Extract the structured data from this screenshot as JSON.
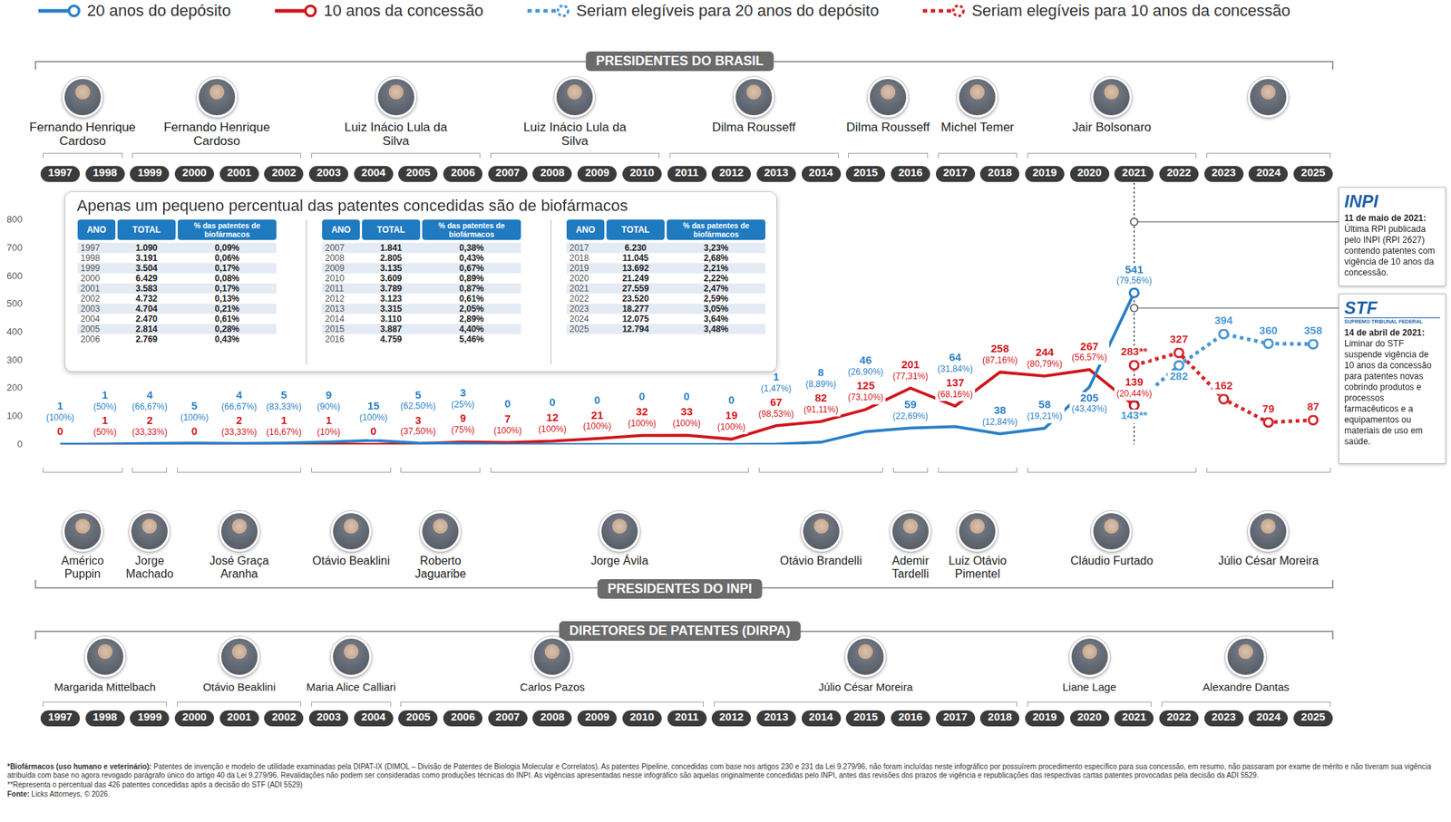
{
  "chart_data": {
    "type": "line",
    "categories": [
      "1997",
      "1998",
      "1999",
      "2000",
      "2001",
      "2002",
      "2003",
      "2004",
      "2005",
      "2006",
      "2007",
      "2008",
      "2009",
      "2010",
      "2011",
      "2012",
      "2013",
      "2014",
      "2015",
      "2016",
      "2017",
      "2018",
      "2019",
      "2020",
      "2021",
      "2022",
      "2023",
      "2024",
      "2025"
    ],
    "ylim": [
      0,
      800
    ],
    "yticks": [
      0,
      100,
      200,
      300,
      400,
      500,
      600,
      700,
      800
    ],
    "grid": false,
    "legend": "top",
    "data_labels": true,
    "series": [
      {
        "name": "20 anos do depósito",
        "color": "#2a7fc6",
        "line_style": "solid",
        "values": [
          1,
          1,
          4,
          5,
          4,
          5,
          9,
          15,
          5,
          3,
          0,
          0,
          0,
          0,
          0,
          0,
          1,
          8,
          46,
          59,
          64,
          38,
          58,
          205,
          541,
          null,
          null,
          null,
          null
        ],
        "value_labels": [
          [
            "1",
            "(100%)"
          ],
          [
            "1",
            "(50%)"
          ],
          [
            "4",
            "(66,67%)"
          ],
          [
            "5",
            "(100%)"
          ],
          [
            "4",
            "(66,67%)"
          ],
          [
            "5",
            "(83,33%)"
          ],
          [
            "9",
            "(90%)"
          ],
          [
            "15",
            "(100%)"
          ],
          [
            "5",
            "(62,50%)"
          ],
          [
            "3",
            "(25%)"
          ],
          [
            "0"
          ],
          [
            "0"
          ],
          [
            "0"
          ],
          [
            "0"
          ],
          [
            "0"
          ],
          [
            "0"
          ],
          [
            "1",
            "(1,47%)"
          ],
          [
            "8",
            "(8,89%)"
          ],
          [
            "46",
            "(26,90%)"
          ],
          [
            "59",
            "(22,69%)"
          ],
          [
            "64",
            "(31,84%)"
          ],
          [
            "38",
            "(12,84%)"
          ],
          [
            "58",
            "(19,21%)"
          ],
          [
            "205",
            "(43,43%)"
          ],
          [
            "541",
            "(79,56%)"
          ],
          null,
          null,
          null,
          null
        ]
      },
      {
        "name": "10 anos da concessão",
        "color": "#d0161b",
        "line_style": "solid",
        "values": [
          0,
          1,
          2,
          0,
          2,
          1,
          1,
          0,
          3,
          9,
          7,
          12,
          21,
          32,
          33,
          19,
          67,
          82,
          125,
          201,
          137,
          258,
          244,
          267,
          139,
          null,
          null,
          null,
          null
        ],
        "value_labels": [
          [
            "0"
          ],
          [
            "1",
            "(50%)"
          ],
          [
            "2",
            "(33,33%)"
          ],
          [
            "0"
          ],
          [
            "2",
            "(33,33%)"
          ],
          [
            "1",
            "(16,67%)"
          ],
          [
            "1",
            "(10%)"
          ],
          [
            "0"
          ],
          [
            "3",
            "(37,50%)"
          ],
          [
            "9",
            "(75%)"
          ],
          [
            "7",
            "(100%)"
          ],
          [
            "12",
            "(100%)"
          ],
          [
            "21",
            "(100%)"
          ],
          [
            "32",
            "(100%)"
          ],
          [
            "33",
            "(100%)"
          ],
          [
            "19",
            "(100%)"
          ],
          [
            "67",
            "(98,53%)"
          ],
          [
            "82",
            "(91,11%)"
          ],
          [
            "125",
            "(73,10%)"
          ],
          [
            "201",
            "(77,31%)"
          ],
          [
            "137",
            "(68,16%)"
          ],
          [
            "258",
            "(87,16%)"
          ],
          [
            "244",
            "(80,79%)"
          ],
          [
            "267",
            "(56,57%)"
          ],
          [
            "139",
            "(20,44%)"
          ],
          null,
          null,
          null,
          null
        ]
      },
      {
        "name": "Seriam elegíveis para 20 anos do depósito",
        "color": "#4a97d6",
        "line_style": "dotted",
        "marker": "circle",
        "values": [
          null,
          null,
          null,
          null,
          null,
          null,
          null,
          null,
          null,
          null,
          null,
          null,
          null,
          null,
          null,
          null,
          null,
          null,
          null,
          null,
          null,
          null,
          null,
          null,
          143,
          282,
          394,
          360,
          358
        ],
        "value_labels": [
          null,
          null,
          null,
          null,
          null,
          null,
          null,
          null,
          null,
          null,
          null,
          null,
          null,
          null,
          null,
          null,
          null,
          null,
          null,
          null,
          null,
          null,
          null,
          null,
          [
            "143**"
          ],
          [
            "282"
          ],
          [
            "394"
          ],
          [
            "360"
          ],
          [
            "358"
          ]
        ]
      },
      {
        "name": "Seriam elegíveis para 10 anos da concessão",
        "color": "#d3262a",
        "line_style": "dotted",
        "marker": "circle",
        "values": [
          null,
          null,
          null,
          null,
          null,
          null,
          null,
          null,
          null,
          null,
          null,
          null,
          null,
          null,
          null,
          null,
          null,
          null,
          null,
          null,
          null,
          null,
          null,
          null,
          283,
          327,
          162,
          79,
          87
        ],
        "value_labels": [
          null,
          null,
          null,
          null,
          null,
          null,
          null,
          null,
          null,
          null,
          null,
          null,
          null,
          null,
          null,
          null,
          null,
          null,
          null,
          null,
          null,
          null,
          null,
          null,
          [
            "283**"
          ],
          [
            "327"
          ],
          [
            "162"
          ],
          [
            "79"
          ],
          [
            "87"
          ]
        ]
      }
    ],
    "annotations": [
      {
        "x": "2021",
        "logo": "INPI",
        "date": "11 de maio de 2021:",
        "text": "Última RPI publicada pelo INPI (RPI 2627) contendo patentes com vigência de 10 anos da concessão."
      },
      {
        "x": "2021",
        "logo": "STF",
        "logo_subtitle": "SUPREMO TRIBUNAL FEDERAL",
        "date": "14 de abril de 2021:",
        "text": "Liminar do STF suspende vigência de 10 anos da concessão para patentes novas cobrindo produtos e processos farmacêuticos e a equipamentos ou materiais de uso em saúde."
      }
    ]
  },
  "table": {
    "title": "Apenas um pequeno percentual das patentes concedidas são de biofármacos",
    "columns": [
      "ANO",
      "TOTAL",
      "% das patentes de biofármacos"
    ],
    "rows": [
      [
        "1997",
        "1.090",
        "0,09%"
      ],
      [
        "1998",
        "3.191",
        "0,06%"
      ],
      [
        "1999",
        "3.504",
        "0,17%"
      ],
      [
        "2000",
        "6.429",
        "0,08%"
      ],
      [
        "2001",
        "3.583",
        "0,17%"
      ],
      [
        "2002",
        "4.732",
        "0,13%"
      ],
      [
        "2003",
        "4.704",
        "0,21%"
      ],
      [
        "2004",
        "2.470",
        "0,61%"
      ],
      [
        "2005",
        "2.814",
        "0,28%"
      ],
      [
        "2006",
        "2.769",
        "0,43%"
      ],
      [
        "2007",
        "1.841",
        "0,38%"
      ],
      [
        "2008",
        "2.805",
        "0,43%"
      ],
      [
        "2009",
        "3.135",
        "0,67%"
      ],
      [
        "2010",
        "3.609",
        "0,89%"
      ],
      [
        "2011",
        "3.789",
        "0,87%"
      ],
      [
        "2012",
        "3.123",
        "0,61%"
      ],
      [
        "2013",
        "3.315",
        "2,05%"
      ],
      [
        "2014",
        "3.110",
        "2,89%"
      ],
      [
        "2015",
        "3.887",
        "4,40%"
      ],
      [
        "2016",
        "4.759",
        "5,46%"
      ],
      [
        "2017",
        "6.230",
        "3,23%"
      ],
      [
        "2018",
        "11.045",
        "2,68%"
      ],
      [
        "2019",
        "13.692",
        "2,21%"
      ],
      [
        "2020",
        "21.249",
        "2,22%"
      ],
      [
        "2021",
        "27.559",
        "2,47%"
      ],
      [
        "2022",
        "23.520",
        "2,59%"
      ],
      [
        "2023",
        "18.277",
        "3,05%"
      ],
      [
        "2024",
        "12.075",
        "3,64%"
      ],
      [
        "2025",
        "12.794",
        "3,48%"
      ]
    ]
  },
  "presidentes_do_brasil": {
    "title": "PRESIDENTES DO BRASIL",
    "items": [
      {
        "name": "Fernando Henrique Cardoso",
        "start": "1997",
        "end": "1998"
      },
      {
        "name": "Fernando Henrique Cardoso",
        "start": "1999",
        "end": "2002"
      },
      {
        "name": "Luiz Inácio Lula da Silva",
        "start": "2003",
        "end": "2006"
      },
      {
        "name": "Luiz Inácio Lula da Silva",
        "start": "2007",
        "end": "2010"
      },
      {
        "name": "Dilma Rousseff",
        "start": "2011",
        "end": "2014"
      },
      {
        "name": "Dilma Rousseff",
        "start": "2015",
        "end": "2016"
      },
      {
        "name": "Michel Temer",
        "start": "2017",
        "end": "2018"
      },
      {
        "name": "Jair Bolsonaro",
        "start": "2019",
        "end": "2022"
      },
      {
        "start": "2023",
        "end": "2025"
      }
    ]
  },
  "presidentes_do_inpi": {
    "title": "PRESIDENTES DO INPI",
    "items": [
      {
        "name": "Américo Puppin",
        "start": "1997",
        "end": "1998"
      },
      {
        "name": "Jorge Machado",
        "start": "1999",
        "end": "1999"
      },
      {
        "name": "José Graça Aranha",
        "start": "2000",
        "end": "2002"
      },
      {
        "name": "Otávio Beaklini",
        "start": "2003",
        "end": "2004"
      },
      {
        "name": "Roberto Jaguaribe",
        "start": "2005",
        "end": "2006"
      },
      {
        "name": "Jorge Ávila",
        "start": "2007",
        "end": "2012"
      },
      {
        "name": "Otávio Brandelli",
        "start": "2013",
        "end": "2015"
      },
      {
        "name": "Ademir Tardelli",
        "start": "2016",
        "end": "2016"
      },
      {
        "name": "Luiz Otávio Pimentel",
        "start": "2017",
        "end": "2018"
      },
      {
        "name": "Cláudio Furtado",
        "start": "2019",
        "end": "2022"
      },
      {
        "name": "Júlio César Moreira",
        "start": "2023",
        "end": "2025"
      }
    ]
  },
  "diretores_de_patentes": {
    "title": "DIRETORES DE PATENTES (DIRPA)",
    "items": [
      {
        "name": "Margarida Mittelbach",
        "start": "1997",
        "end": "1999"
      },
      {
        "name": "Otávio Beaklini",
        "start": "2000",
        "end": "2002"
      },
      {
        "name": "Maria Alice Calliari",
        "start": "2003",
        "end": "2004"
      },
      {
        "name": "Carlos Pazos",
        "start": "2005",
        "end": "2011"
      },
      {
        "name": "Júlio César Moreira",
        "start": "2012",
        "end": "2018"
      },
      {
        "name": "Liane Lage",
        "start": "2019",
        "end": "2021"
      },
      {
        "name": "Alexandre Dantas",
        "start": "2022",
        "end": "2025"
      }
    ]
  },
  "footnotes": [
    {
      "term": "*Biofármacos (uso humano e veterinário):",
      "text": "Patentes de invenção e modelo de utilidade examinadas pela DIPAT-IX (DIMOL – Divisão de Patentes de Biologia Molecular e Correlatos). As patentes Pipeline, concedidas com base nos artigos 230 e 231 da Lei 9.279/96, não foram incluídas neste infográfico por possuírem procedimento específico para sua concessão, em resumo, não passaram por exame de mérito e não tiveram sua vigência atribuída com base no agora revogado parágrafo único do artigo 40 da Lei 9.279/96. Revalidações não podem ser consideradas como produções técnicas do INPI. As vigências apresentadas nesse infográfico são aquelas originalmente concedidas pelo INPI, antes das revisões dos prazos de vigência e republicações das respectivas cartas patentes provocadas pela decisão da ADI 5529."
    },
    {
      "text": "**Representa o percentual das 426 patentes concedidas após a decisão do STF (ADI 5529)"
    },
    {
      "term": "Fonte:",
      "text": "Licks Attorneys, © 2026."
    }
  ]
}
